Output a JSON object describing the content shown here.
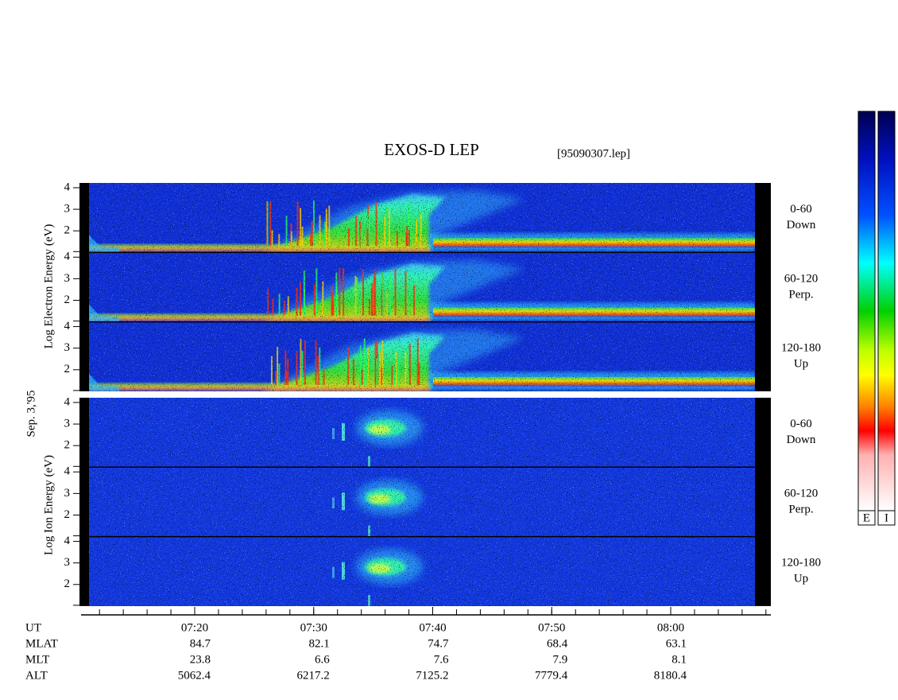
{
  "header": {
    "title": "EXOS-D LEP",
    "file": "[95090307.lep]"
  },
  "date": "Sep. 3,'95",
  "electron": {
    "axis_label": "Log Electron Energy (eV)",
    "ylim": [
      1,
      4.22
    ],
    "yticks": [
      4,
      3,
      2
    ],
    "panels": [
      {
        "pitch": "0-60",
        "direction": "Down"
      },
      {
        "pitch": "60-120",
        "direction": "Perp."
      },
      {
        "pitch": "120-180",
        "direction": "Up"
      }
    ]
  },
  "ion": {
    "axis_label": "Log Ion Energy (eV)",
    "ylim": [
      1,
      4.22
    ],
    "yticks": [
      4,
      3,
      2
    ],
    "panels": [
      {
        "pitch": "0-60",
        "direction": "Down"
      },
      {
        "pitch": "60-120",
        "direction": "Perp."
      },
      {
        "pitch": "120-180",
        "direction": "Up"
      }
    ]
  },
  "time_axis": {
    "label": "UT",
    "ticks": [
      "07:20",
      "07:30",
      "07:40",
      "07:50",
      "08:00"
    ]
  },
  "ephemeris": [
    {
      "label": "MLAT",
      "values": [
        84.7,
        82.1,
        74.7,
        68.4,
        63.1
      ]
    },
    {
      "label": "MLT",
      "values": [
        23.8,
        6.6,
        7.6,
        7.9,
        8.1
      ]
    },
    {
      "label": "ALT",
      "values": [
        5062.4,
        6217.2,
        7125.2,
        7779.4,
        8180.4
      ]
    }
  ],
  "colorbar": {
    "labels": [
      "E",
      "I"
    ]
  }
}
